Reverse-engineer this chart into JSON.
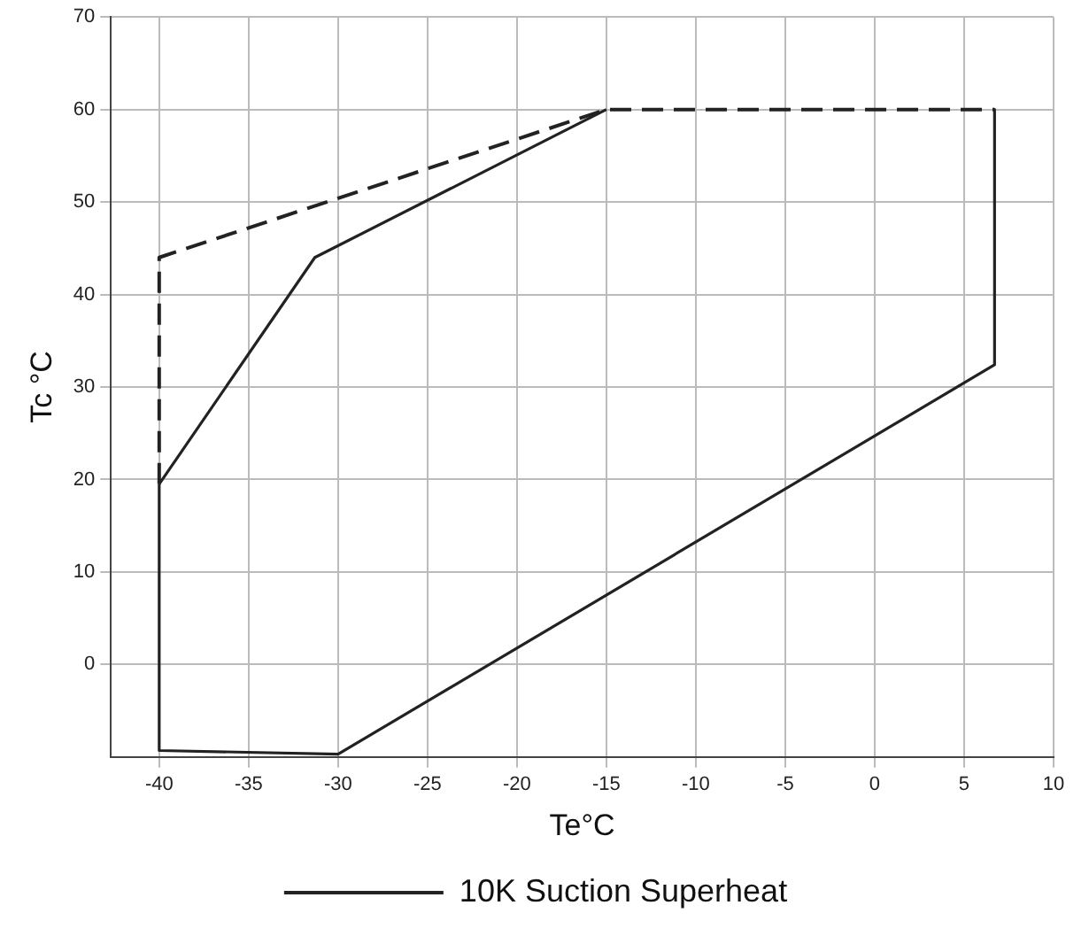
{
  "chart_data": {
    "type": "line",
    "xlabel": "Te°C",
    "ylabel": "Tc °C",
    "xlim": [
      -42.7,
      10
    ],
    "xticks": [
      -40,
      -35,
      -30,
      -25,
      -20,
      -15,
      -10,
      -5,
      0,
      5,
      10
    ],
    "ylim": [
      -10,
      70
    ],
    "yticks": [
      0,
      10,
      20,
      30,
      40,
      50,
      60,
      70
    ],
    "grid": true,
    "legend": "bottom",
    "marker": "none",
    "series": [
      {
        "color": "#222222",
        "line_style": "solid",
        "x": [
          -40,
          -31.3,
          -15
        ],
        "values": [
          19.5,
          44,
          60
        ]
      },
      {
        "color": "#222222",
        "line_style": "solid",
        "x": [
          6.7,
          6.7,
          -30,
          -40,
          -40
        ],
        "values": [
          60,
          32.4,
          -9.7,
          -9.3,
          19.5
        ]
      },
      {
        "name": "10K Suction Superheat",
        "color": "#222222",
        "line_style": "dashed",
        "x": [
          -40,
          -40,
          -15,
          6.7
        ],
        "values": [
          19.5,
          44,
          60,
          60
        ]
      }
    ]
  }
}
